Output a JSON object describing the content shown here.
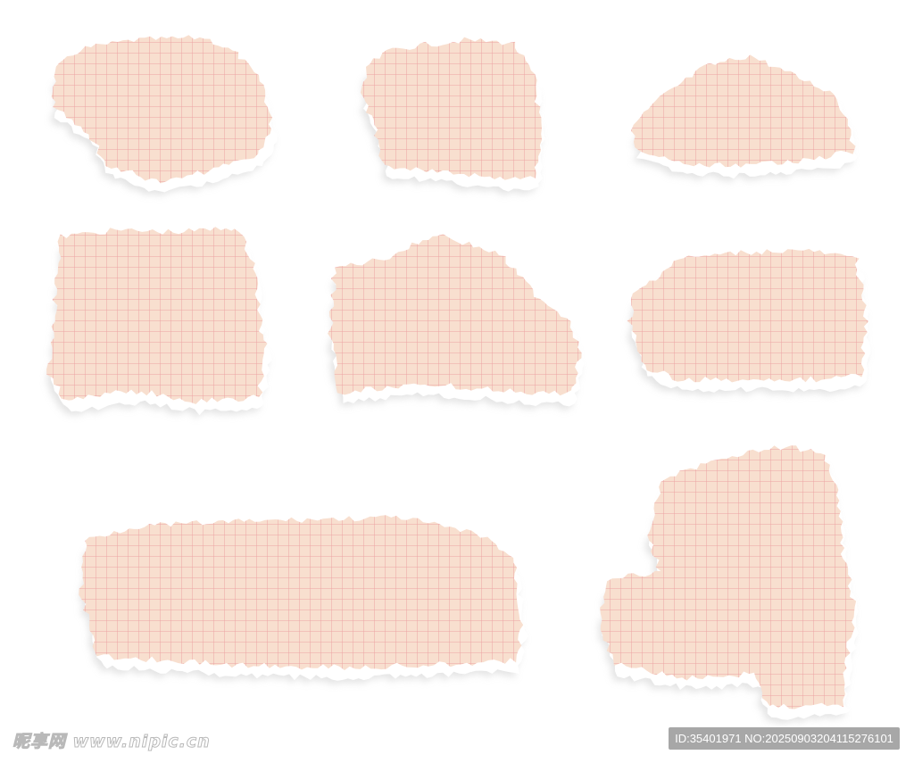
{
  "colors": {
    "paper": "#f8dfcf",
    "grid_line": "#eca3a3",
    "torn_edge": "#ffffff",
    "shadow": "#cfcfcf"
  },
  "piece_count": 8,
  "watermark": {
    "site": "昵享网 www.nipic.cn",
    "id_label": "ID:35401971 NO:20250903204115276101"
  }
}
